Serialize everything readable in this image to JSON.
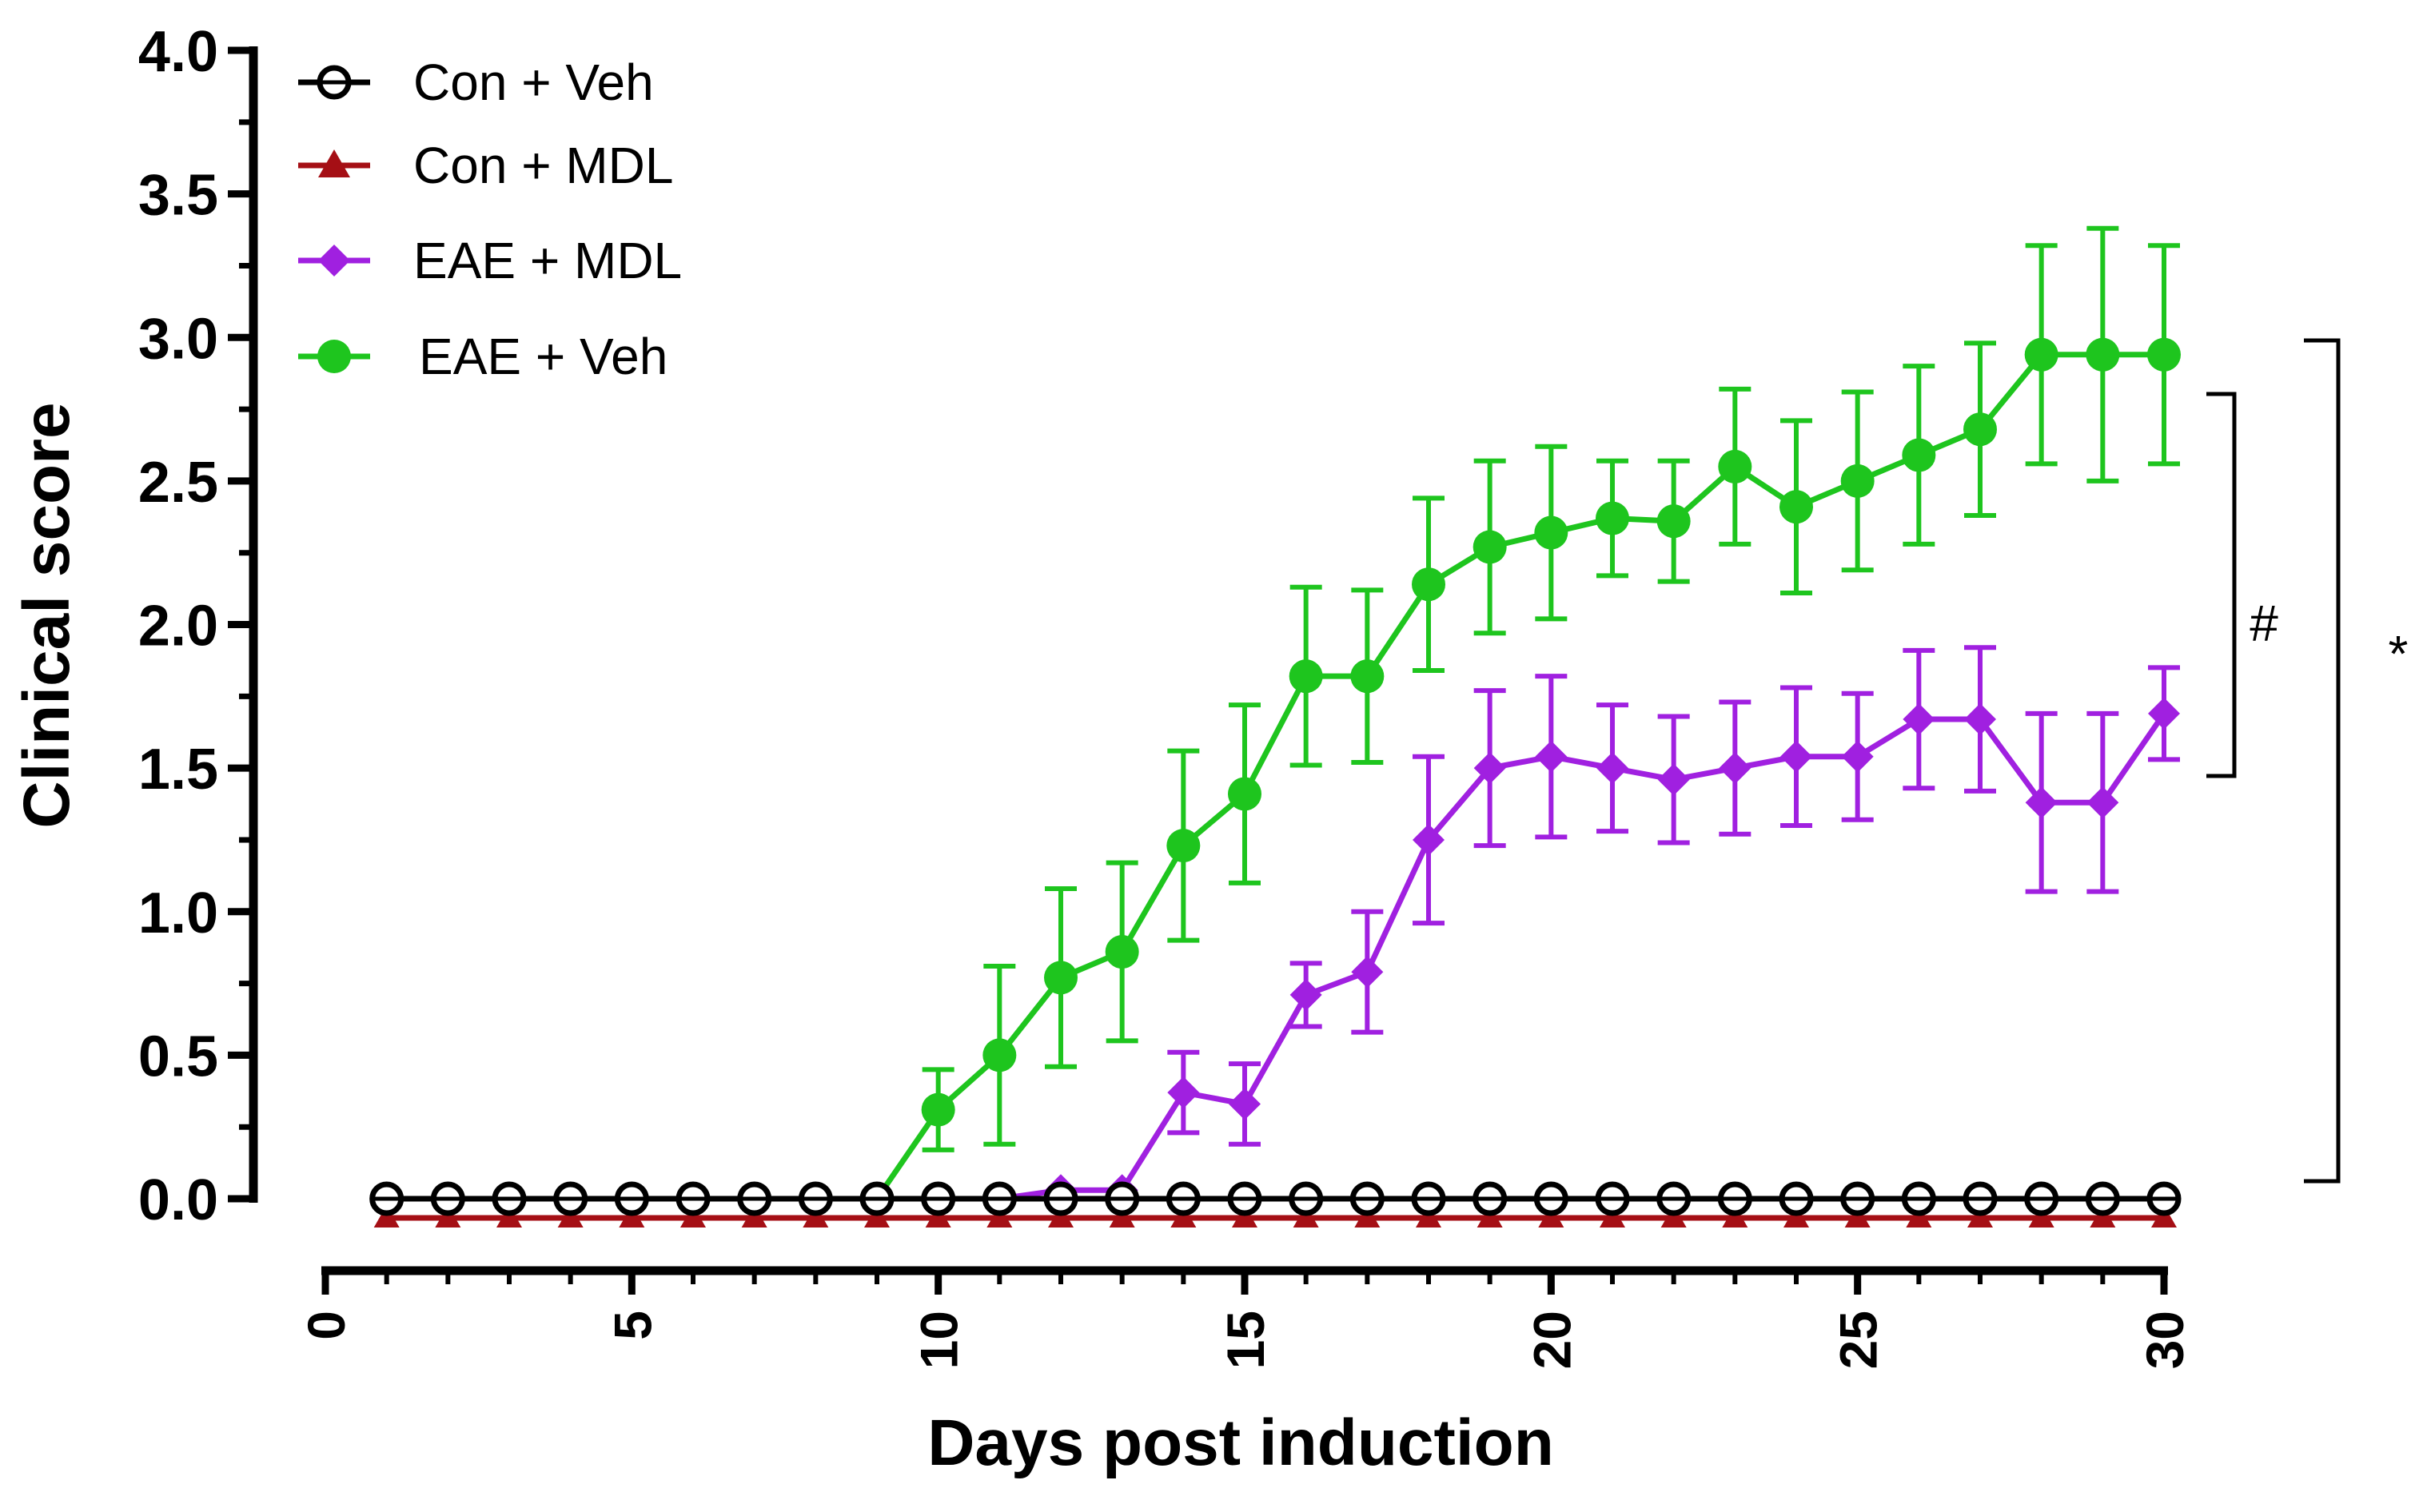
{
  "chart_data": {
    "type": "line",
    "xlabel": "Days post induction",
    "ylabel": "Clinical score",
    "xlim": [
      0,
      30
    ],
    "ylim": [
      0,
      4.0
    ],
    "x_ticks": [
      "0",
      "5",
      "10",
      "15",
      "20",
      "25",
      "30"
    ],
    "y_ticks": [
      "0.0",
      "0.5",
      "1.0",
      "1.5",
      "2.0",
      "2.5",
      "3.0",
      "3.5",
      "4.0"
    ],
    "grid": false,
    "legend_position": "top-left",
    "x": [
      1,
      2,
      3,
      4,
      5,
      6,
      7,
      8,
      9,
      10,
      11,
      12,
      13,
      14,
      15,
      16,
      17,
      18,
      19,
      20,
      21,
      22,
      23,
      24,
      25,
      26,
      27,
      28,
      29,
      30
    ],
    "series": [
      {
        "name": "Con + Veh",
        "color": "#000000",
        "marker": "open-circle",
        "values": [
          0,
          0,
          0,
          0,
          0,
          0,
          0,
          0,
          0,
          0,
          0,
          0,
          0,
          0,
          0,
          0,
          0,
          0,
          0,
          0,
          0,
          0,
          0,
          0,
          0,
          0,
          0,
          0,
          0,
          0
        ],
        "errors": [
          0,
          0,
          0,
          0,
          0,
          0,
          0,
          0,
          0,
          0,
          0,
          0,
          0,
          0,
          0,
          0,
          0,
          0,
          0,
          0,
          0,
          0,
          0,
          0,
          0,
          0,
          0,
          0,
          0,
          0
        ]
      },
      {
        "name": "Con + MDL",
        "color": "#a50f15",
        "marker": "triangle",
        "values": [
          0,
          0,
          0,
          0,
          0,
          0,
          0,
          0,
          0,
          0,
          0,
          0,
          0,
          0,
          0,
          0,
          0,
          0,
          0,
          0,
          0,
          0,
          0,
          0,
          0,
          0,
          0,
          0,
          0,
          0
        ],
        "errors": [
          0,
          0,
          0,
          0,
          0,
          0,
          0,
          0,
          0,
          0,
          0,
          0,
          0,
          0,
          0,
          0,
          0,
          0,
          0,
          0,
          0,
          0,
          0,
          0,
          0,
          0,
          0,
          0,
          0,
          0
        ]
      },
      {
        "name": "EAE + MDL",
        "color": "#a020e0",
        "marker": "diamond",
        "values": [
          0,
          0,
          0,
          0,
          0,
          0,
          0,
          0,
          0,
          0,
          0,
          0.03,
          0.03,
          0.37,
          0.33,
          0.71,
          0.79,
          1.25,
          1.5,
          1.54,
          1.5,
          1.46,
          1.5,
          1.54,
          1.54,
          1.67,
          1.67,
          1.38,
          1.38,
          1.69
        ],
        "errors": [
          0,
          0,
          0,
          0,
          0,
          0,
          0,
          0,
          0,
          0,
          0,
          0,
          0,
          0.14,
          0.14,
          0.11,
          0.21,
          0.29,
          0.27,
          0.28,
          0.22,
          0.22,
          0.23,
          0.24,
          0.22,
          0.24,
          0.25,
          0.31,
          0.31,
          0.16
        ]
      },
      {
        "name": "EAE + Veh",
        "color": "#1ec51e",
        "marker": "filled-circle",
        "values": [
          0,
          0,
          0,
          0,
          0,
          0,
          0,
          0,
          0,
          0.31,
          0.5,
          0.77,
          0.86,
          1.23,
          1.41,
          1.82,
          1.82,
          2.14,
          2.27,
          2.32,
          2.37,
          2.36,
          2.55,
          2.41,
          2.5,
          2.59,
          2.68,
          2.94,
          2.94,
          2.94
        ],
        "errors": [
          0,
          0,
          0,
          0,
          0,
          0,
          0,
          0,
          0,
          0.14,
          0.31,
          0.31,
          0.31,
          0.33,
          0.31,
          0.31,
          0.3,
          0.3,
          0.3,
          0.3,
          0.2,
          0.21,
          0.27,
          0.3,
          0.31,
          0.31,
          0.3,
          0.38,
          0.44,
          0.38
        ]
      }
    ],
    "annotations": [
      {
        "label": "#",
        "between": [
          "EAE + Veh",
          "EAE + MDL"
        ]
      },
      {
        "label": "*",
        "between": [
          "EAE + Veh",
          "Con + Veh"
        ]
      }
    ]
  }
}
